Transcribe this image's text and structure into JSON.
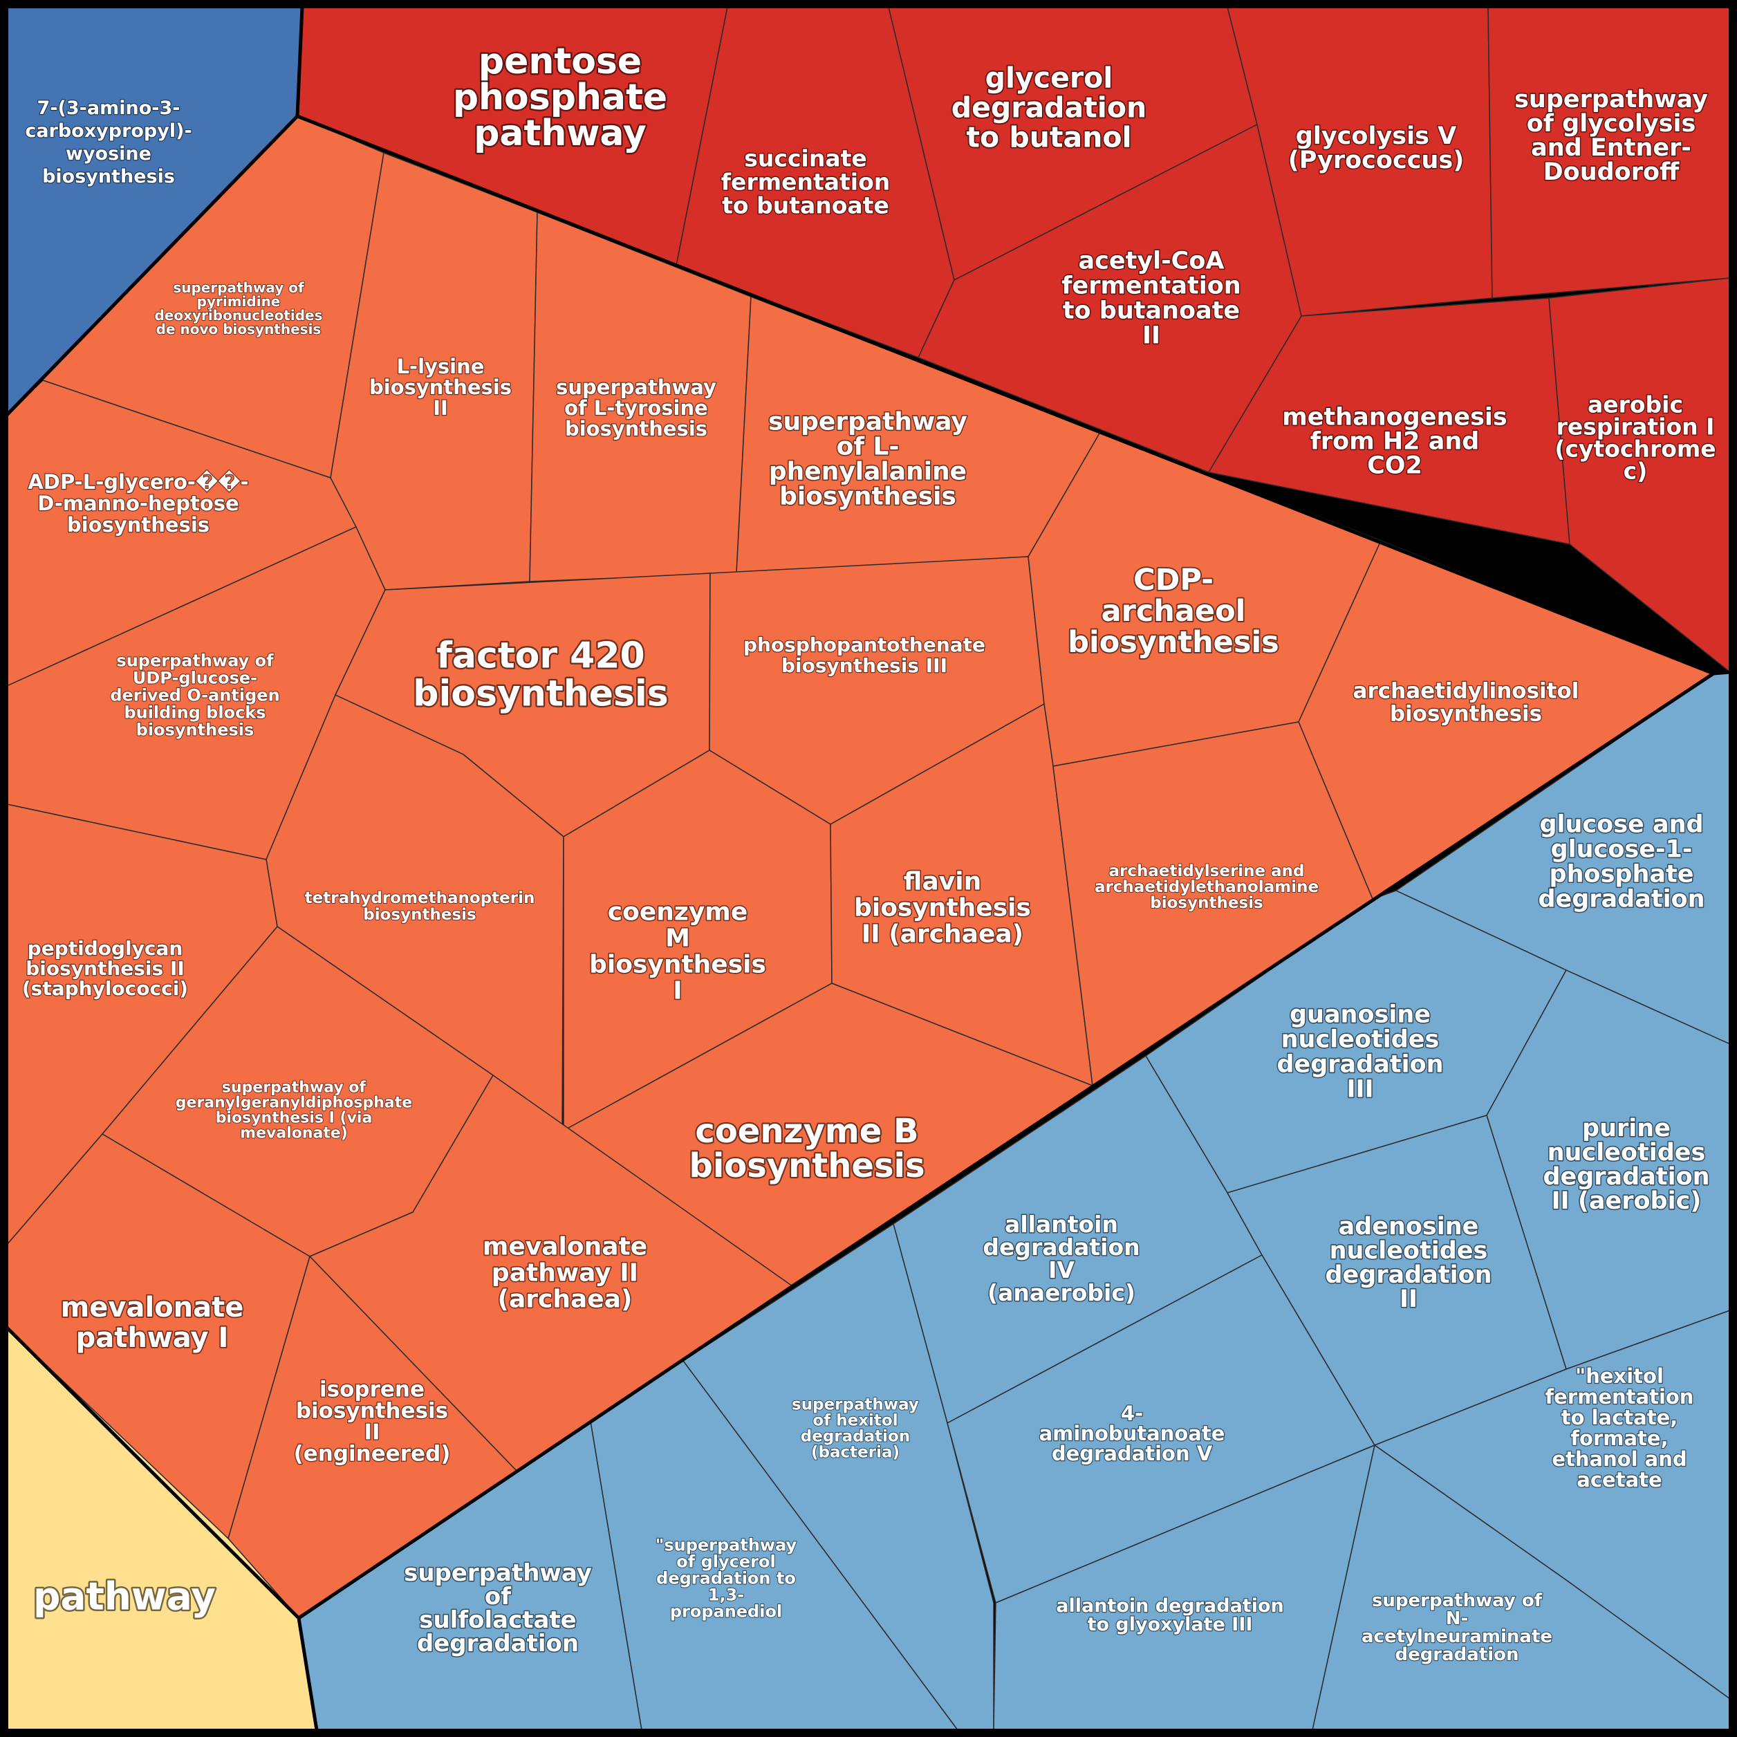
{
  "chart_data": {
    "type": "voronoi-treemap",
    "title": "",
    "colors": {
      "dark_red": "#D62F27",
      "orange": "#F36D45",
      "light_blue": "#76ABD1",
      "dark_blue": "#4574B3",
      "yellow": "#FEE08F"
    },
    "cells": [
      {
        "label": "7-(3-amino-3-carboxypropyl)-wyosine biosynthesis",
        "lines": [
          "7-(3-amino-3-",
          "carboxypropyl)-",
          "wyosine",
          "biosynthesis"
        ],
        "group": "dark_blue"
      },
      {
        "label": "pentose phosphate pathway",
        "lines": [
          "pentose",
          "phosphate",
          "pathway"
        ],
        "group": "dark_red"
      },
      {
        "label": "succinate fermentation to butanoate",
        "lines": [
          "succinate",
          "fermentation",
          "to butanoate"
        ],
        "group": "dark_red"
      },
      {
        "label": "glycerol degradation to butanol",
        "lines": [
          "glycerol",
          "degradation",
          "to butanol"
        ],
        "group": "dark_red"
      },
      {
        "label": "acetyl-CoA fermentation to butanoate II",
        "lines": [
          "acetyl-CoA",
          "fermentation",
          "to butanoate",
          "II"
        ],
        "group": "dark_red"
      },
      {
        "label": "glycolysis V (Pyrococcus)",
        "lines": [
          "glycolysis V",
          "(Pyrococcus)"
        ],
        "group": "dark_red"
      },
      {
        "label": "superpathway of glycolysis and Entner-Doudoroff",
        "lines": [
          "superpathway",
          "of glycolysis",
          "and Entner-",
          "Doudoroff"
        ],
        "group": "dark_red"
      },
      {
        "label": "methanogenesis from H2 and CO2",
        "lines": [
          "methanogenesis",
          "from H2 and",
          "CO2"
        ],
        "group": "dark_red"
      },
      {
        "label": "aerobic respiration I (cytochrome c)",
        "lines": [
          "aerobic",
          "respiration I",
          "(cytochrome",
          "c)"
        ],
        "group": "dark_red"
      },
      {
        "label": "superpathway of pyrimidine deoxyribonucleotides de novo biosynthesis",
        "lines": [
          "superpathway of",
          "pyrimidine",
          "deoxyribonucleotides",
          "de novo biosynthesis"
        ],
        "group": "orange"
      },
      {
        "label": "L-lysine biosynthesis II",
        "lines": [
          "L-lysine",
          "biosynthesis",
          "II"
        ],
        "group": "orange"
      },
      {
        "label": "superpathway of L-tyrosine biosynthesis",
        "lines": [
          "superpathway",
          "of L-tyrosine",
          "biosynthesis"
        ],
        "group": "orange"
      },
      {
        "label": "superpathway of L-phenylalanine biosynthesis",
        "lines": [
          "superpathway",
          "of L-",
          "phenylalanine",
          "biosynthesis"
        ],
        "group": "orange"
      },
      {
        "label": "ADP-L-glycero-��-D-manno-heptose biosynthesis",
        "lines": [
          "ADP-L-glycero-��-",
          "D-manno-heptose",
          "biosynthesis"
        ],
        "group": "orange"
      },
      {
        "label": "superpathway of UDP-glucose-derived O-antigen building blocks biosynthesis",
        "lines": [
          "superpathway of",
          "UDP-glucose-",
          "derived O-antigen",
          "building blocks",
          "biosynthesis"
        ],
        "group": "orange"
      },
      {
        "label": "factor 420 biosynthesis",
        "lines": [
          "factor 420",
          "biosynthesis"
        ],
        "group": "orange"
      },
      {
        "label": "phosphopantothenate biosynthesis III",
        "lines": [
          "phosphopantothenate",
          "biosynthesis III"
        ],
        "group": "orange"
      },
      {
        "label": "CDP-archaeol biosynthesis",
        "lines": [
          "CDP-",
          "archaeol",
          "biosynthesis"
        ],
        "group": "orange"
      },
      {
        "label": "archaetidylinositol biosynthesis",
        "lines": [
          "archaetidylinositol",
          "biosynthesis"
        ],
        "group": "orange"
      },
      {
        "label": "tetrahydromethanopterin biosynthesis",
        "lines": [
          "tetrahydromethanopterin",
          "biosynthesis"
        ],
        "group": "orange"
      },
      {
        "label": "coenzyme M biosynthesis I",
        "lines": [
          "coenzyme",
          "M",
          "biosynthesis",
          "I"
        ],
        "group": "orange"
      },
      {
        "label": "flavin biosynthesis II (archaea)",
        "lines": [
          "flavin",
          "biosynthesis",
          "II (archaea)"
        ],
        "group": "orange"
      },
      {
        "label": "archaetidylserine and archaetidylethanolamine biosynthesis",
        "lines": [
          "archaetidylserine and",
          "archaetidylethanolamine",
          "biosynthesis"
        ],
        "group": "orange"
      },
      {
        "label": "peptidoglycan biosynthesis II (staphylococci)",
        "lines": [
          "peptidoglycan",
          "biosynthesis II",
          "(staphylococci)"
        ],
        "group": "orange"
      },
      {
        "label": "superpathway of geranylgeranyldiphosphate biosynthesis I (via mevalonate)",
        "lines": [
          "superpathway of",
          "geranylgeranyldiphosphate",
          "biosynthesis I (via",
          "mevalonate)"
        ],
        "group": "orange"
      },
      {
        "label": "coenzyme B biosynthesis",
        "lines": [
          "coenzyme B",
          "biosynthesis"
        ],
        "group": "orange"
      },
      {
        "label": "mevalonate pathway I",
        "lines": [
          "mevalonate",
          "pathway I"
        ],
        "group": "orange"
      },
      {
        "label": "mevalonate pathway II (archaea)",
        "lines": [
          "mevalonate",
          "pathway II",
          "(archaea)"
        ],
        "group": "orange"
      },
      {
        "label": "isoprene biosynthesis II (engineered)",
        "lines": [
          "isoprene",
          "biosynthesis",
          "II",
          "(engineered)"
        ],
        "group": "orange"
      },
      {
        "label": "glucose and glucose-1-phosphate degradation",
        "lines": [
          "glucose and",
          "glucose-1-",
          "phosphate",
          "degradation"
        ],
        "group": "light_blue"
      },
      {
        "label": "guanosine nucleotides degradation III",
        "lines": [
          "guanosine",
          "nucleotides",
          "degradation",
          "III"
        ],
        "group": "light_blue"
      },
      {
        "label": "purine nucleotides degradation II (aerobic)",
        "lines": [
          "purine",
          "nucleotides",
          "degradation",
          "II (aerobic)"
        ],
        "group": "light_blue"
      },
      {
        "label": "allantoin degradation IV (anaerobic)",
        "lines": [
          "allantoin",
          "degradation",
          "IV",
          "(anaerobic)"
        ],
        "group": "light_blue"
      },
      {
        "label": "adenosine nucleotides degradation II",
        "lines": [
          "adenosine",
          "nucleotides",
          "degradation",
          "II"
        ],
        "group": "light_blue"
      },
      {
        "label": "superpathway of hexitol degradation (bacteria)",
        "lines": [
          "superpathway",
          "of hexitol",
          "degradation",
          "(bacteria)"
        ],
        "group": "light_blue"
      },
      {
        "label": "4-aminobutanoate degradation V",
        "lines": [
          "4-",
          "aminobutanoate",
          "degradation V"
        ],
        "group": "light_blue"
      },
      {
        "label": "\"hexitol fermentation to lactate, formate, ethanol and acetate",
        "lines": [
          "\"hexitol",
          "fermentation",
          "to lactate,",
          "formate,",
          "ethanol and",
          "acetate"
        ],
        "group": "light_blue"
      },
      {
        "label": "superpathway of sulfolactate degradation",
        "lines": [
          "superpathway",
          "of",
          "sulfolactate",
          "degradation"
        ],
        "group": "light_blue"
      },
      {
        "label": "\"superpathway of glycerol degradation to 1,3-propanediol",
        "lines": [
          "\"superpathway",
          "of glycerol",
          "degradation to",
          "1,3-",
          "propanediol"
        ],
        "group": "light_blue"
      },
      {
        "label": "allantoin degradation to glyoxylate III",
        "lines": [
          "allantoin degradation",
          "to glyoxylate III"
        ],
        "group": "light_blue"
      },
      {
        "label": "superpathway of N-acetylneuraminate degradation",
        "lines": [
          "superpathway of",
          "N-",
          "acetylneuraminate",
          "degradation"
        ],
        "group": "light_blue"
      },
      {
        "label": "pathway",
        "lines": [
          "pathway"
        ],
        "group": "yellow"
      }
    ]
  }
}
